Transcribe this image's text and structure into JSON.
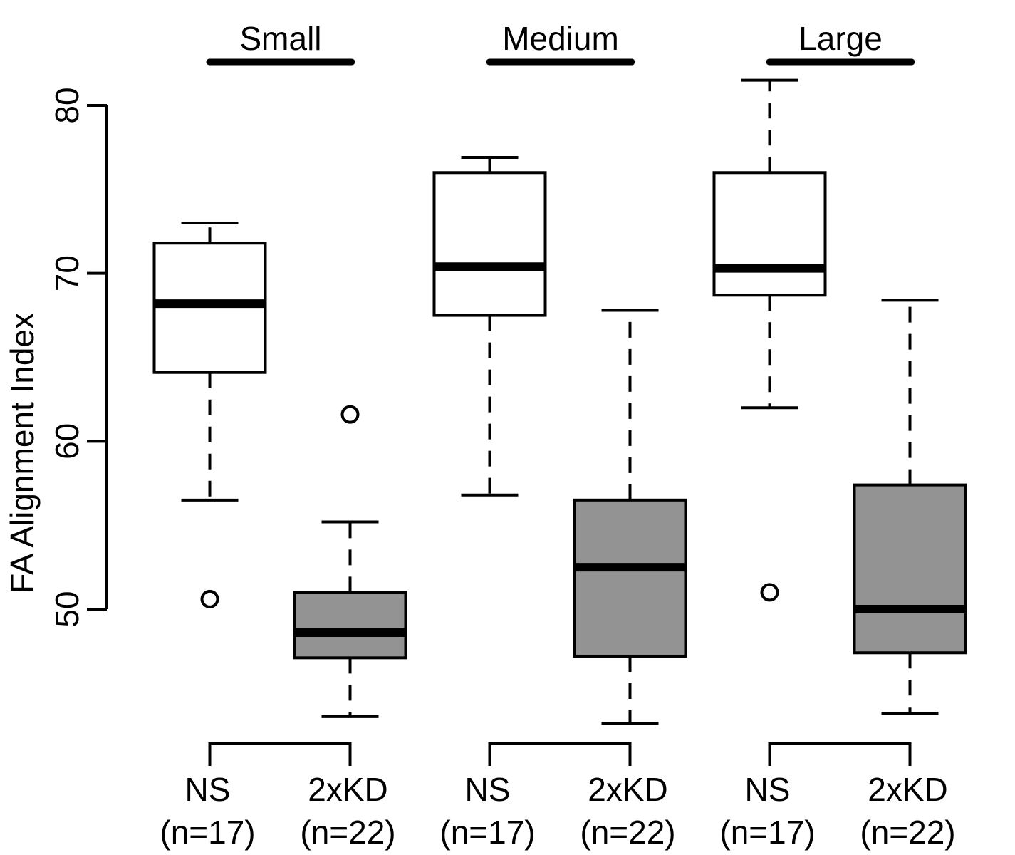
{
  "chart_data": {
    "type": "boxplot",
    "ylabel": "FA Alignment Index",
    "yticks": [
      50,
      60,
      70,
      80
    ],
    "ylim": [
      42.5,
      81.5
    ],
    "colors": {
      "NS": "#ffffff",
      "2xKD": "#939393",
      "stroke": "#000000"
    },
    "groups": [
      {
        "title": "Small",
        "boxes": [
          {
            "label": "NS",
            "n_label": "(n=17)",
            "fill": "white",
            "whisker_low": 56.5,
            "q1": 64.1,
            "median": 68.2,
            "q3": 71.8,
            "whisker_high": 73.0,
            "outliers": [
              50.6
            ]
          },
          {
            "label": "2xKD",
            "n_label": "(n=22)",
            "fill": "gray",
            "whisker_low": 43.6,
            "q1": 47.1,
            "median": 48.6,
            "q3": 51.0,
            "whisker_high": 55.2,
            "outliers": [
              61.6
            ]
          }
        ]
      },
      {
        "title": "Medium",
        "boxes": [
          {
            "label": "NS",
            "n_label": "(n=17)",
            "fill": "white",
            "whisker_low": 56.8,
            "q1": 67.5,
            "median": 70.4,
            "q3": 76.0,
            "whisker_high": 76.9,
            "outliers": []
          },
          {
            "label": "2xKD",
            "n_label": "(n=22)",
            "fill": "gray",
            "whisker_low": 43.2,
            "q1": 47.2,
            "median": 52.5,
            "q3": 56.5,
            "whisker_high": 67.8,
            "outliers": []
          }
        ]
      },
      {
        "title": "Large",
        "boxes": [
          {
            "label": "NS",
            "n_label": "(n=17)",
            "fill": "white",
            "whisker_low": 62.0,
            "q1": 68.7,
            "median": 70.3,
            "q3": 76.0,
            "whisker_high": 81.5,
            "outliers": [
              51.0
            ]
          },
          {
            "label": "2xKD",
            "n_label": "(n=22)",
            "fill": "gray",
            "whisker_low": 43.8,
            "q1": 47.4,
            "median": 50.0,
            "q3": 57.4,
            "whisker_high": 68.4,
            "outliers": []
          }
        ]
      }
    ]
  }
}
